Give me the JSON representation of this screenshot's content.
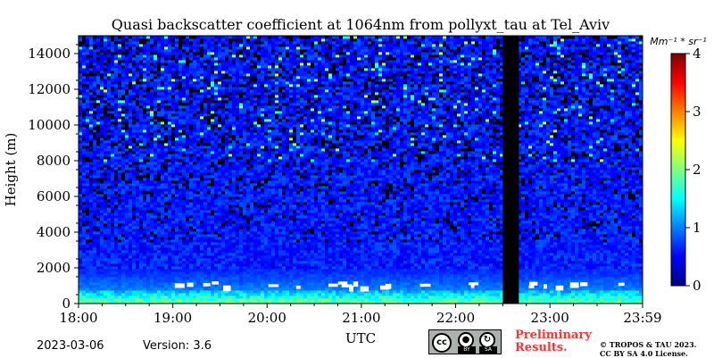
{
  "chart_data": {
    "type": "heatmap",
    "title": "Quasi backscatter coefficient at 1064nm from pollyxt_tau at Tel_Aviv",
    "xlabel": "UTC",
    "ylabel": "Height (m)",
    "x_ticks": [
      "18:00",
      "19:00",
      "20:00",
      "21:00",
      "22:00",
      "23:00",
      "23:59"
    ],
    "x_tick_hours": [
      18,
      19,
      20,
      21,
      22,
      23,
      23.983
    ],
    "xlim": [
      18,
      23.983
    ],
    "y_ticks": [
      0,
      2000,
      4000,
      6000,
      8000,
      10000,
      12000,
      14000
    ],
    "ylim": [
      0,
      15000
    ],
    "colorbar": {
      "label": "Mm⁻¹ * sr⁻¹",
      "range": [
        0,
        4
      ],
      "ticks": [
        0,
        1,
        2,
        3,
        4
      ],
      "colormap": "jet",
      "colors": [
        "#00007f",
        "#0000ff",
        "#007fff",
        "#00ffff",
        "#7fff7f",
        "#ffff00",
        "#ff7f00",
        "#ff0000",
        "#7f0000"
      ]
    },
    "no_data_interval_utc": [
      22.5,
      22.67
    ],
    "boundary_layer": {
      "top_m": 2000,
      "surface_value": 2.0,
      "cloud_base_m": 800,
      "description_values": "low boundary layer ~1000-2000 m with strong near-surface backscatter and scattered low clouds (white, saturated)"
    },
    "background_value": 0.6
  },
  "footer": {
    "date": "2023-03-06",
    "version": "Version: 3.6",
    "preliminary_line1": "Preliminary",
    "preliminary_line2": "Results.",
    "copyright_line1": "© TROPOS & TAU 2023.",
    "copyright_line2": "CC BY SA 4.0 License.",
    "cc_badge": {
      "cc": "cc",
      "by": "BY",
      "sa": "SA"
    }
  }
}
